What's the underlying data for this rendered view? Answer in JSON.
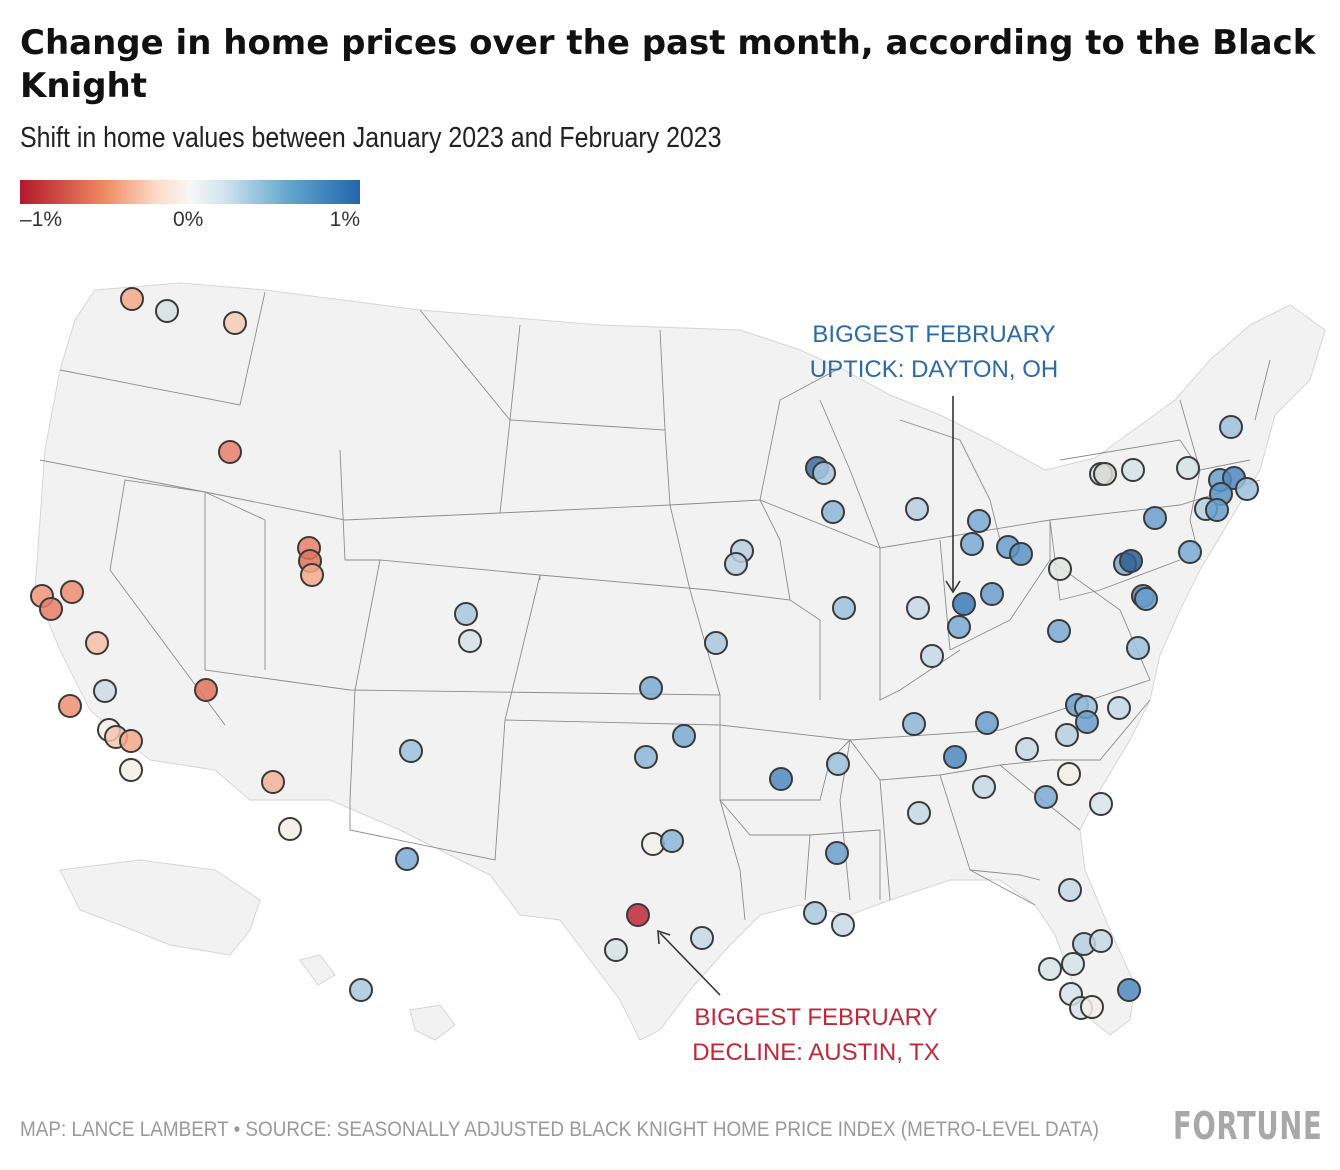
{
  "title": "Change in home prices over the past month, according to the Black Knight",
  "subtitle": "Shift in home values between January 2023 and February 2023",
  "legend": {
    "min_label": "–1%",
    "mid_label": "0%",
    "max_label": "1%"
  },
  "annotations": {
    "uptick_line1": "BIGGEST FEBRUARY",
    "uptick_line2": "UPTICK: DAYTON, OH",
    "decline_line1": "BIGGEST FEBRUARY",
    "decline_line2": "DECLINE: AUSTIN, TX"
  },
  "credit": "MAP: LANCE LAMBERT • SOURCE: SEASONALLY ADJUSTED BLACK KNIGHT HOME PRICE INDEX (METRO-LEVEL DATA)",
  "logo": "FORTUNE",
  "colors": {
    "uptick": "#2a6aa5",
    "decline": "#c0283a",
    "negative": "#b2182b",
    "neutral": "#f7f7f7",
    "positive": "#2166ac"
  }
}
